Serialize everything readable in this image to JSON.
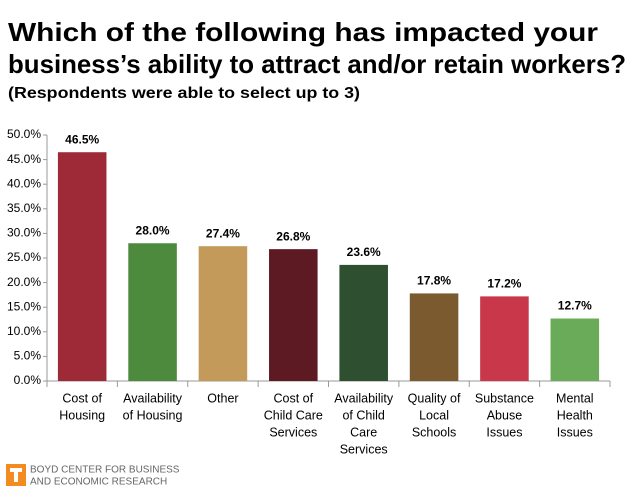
{
  "chart_data": {
    "type": "bar",
    "title": [
      "Which of the following has impacted your",
      "business’s ability to attract and/or retain workers?"
    ],
    "subtitle": "(Respondents were able to select up to 3)",
    "categories": [
      [
        "Cost of",
        "Housing"
      ],
      [
        "Availability",
        "of Housing"
      ],
      [
        "Other"
      ],
      [
        "Cost of",
        "Child Care",
        "Services"
      ],
      [
        "Availability",
        "of Child",
        "Care",
        "Services"
      ],
      [
        "Quality of",
        "Local",
        "Schools"
      ],
      [
        "Substance",
        "Abuse",
        "Issues"
      ],
      [
        "Mental",
        "Health",
        "Issues"
      ]
    ],
    "values": [
      46.5,
      28.0,
      27.4,
      26.8,
      23.6,
      17.8,
      17.2,
      12.7
    ],
    "value_labels": [
      "46.5%",
      "28.0%",
      "27.4%",
      "26.8%",
      "23.6%",
      "17.8%",
      "17.2%",
      "12.7%"
    ],
    "colors": [
      "#9e2a37",
      "#4e8a3e",
      "#c49a5a",
      "#5e1a22",
      "#2e5030",
      "#7a5a2e",
      "#c8374a",
      "#6aab5a"
    ],
    "ylim": [
      0,
      50
    ],
    "yticks": [
      {
        "value": 0,
        "label": "0.0%"
      },
      {
        "value": 5,
        "label": "5.0%"
      },
      {
        "value": 10,
        "label": "10.0%"
      },
      {
        "value": 15,
        "label": "15.0%"
      },
      {
        "value": 20,
        "label": "20.0%"
      },
      {
        "value": 25,
        "label": "25.0%"
      },
      {
        "value": 30,
        "label": "30.0%"
      },
      {
        "value": 35,
        "label": "35.0%"
      },
      {
        "value": 40,
        "label": "40.0%"
      },
      {
        "value": 45,
        "label": "45.0%"
      },
      {
        "value": 50,
        "label": "50.0%"
      }
    ],
    "grid": false,
    "footer": [
      "BOYD CENTER FOR BUSINESS",
      "AND ECONOMIC RESEARCH"
    ]
  }
}
